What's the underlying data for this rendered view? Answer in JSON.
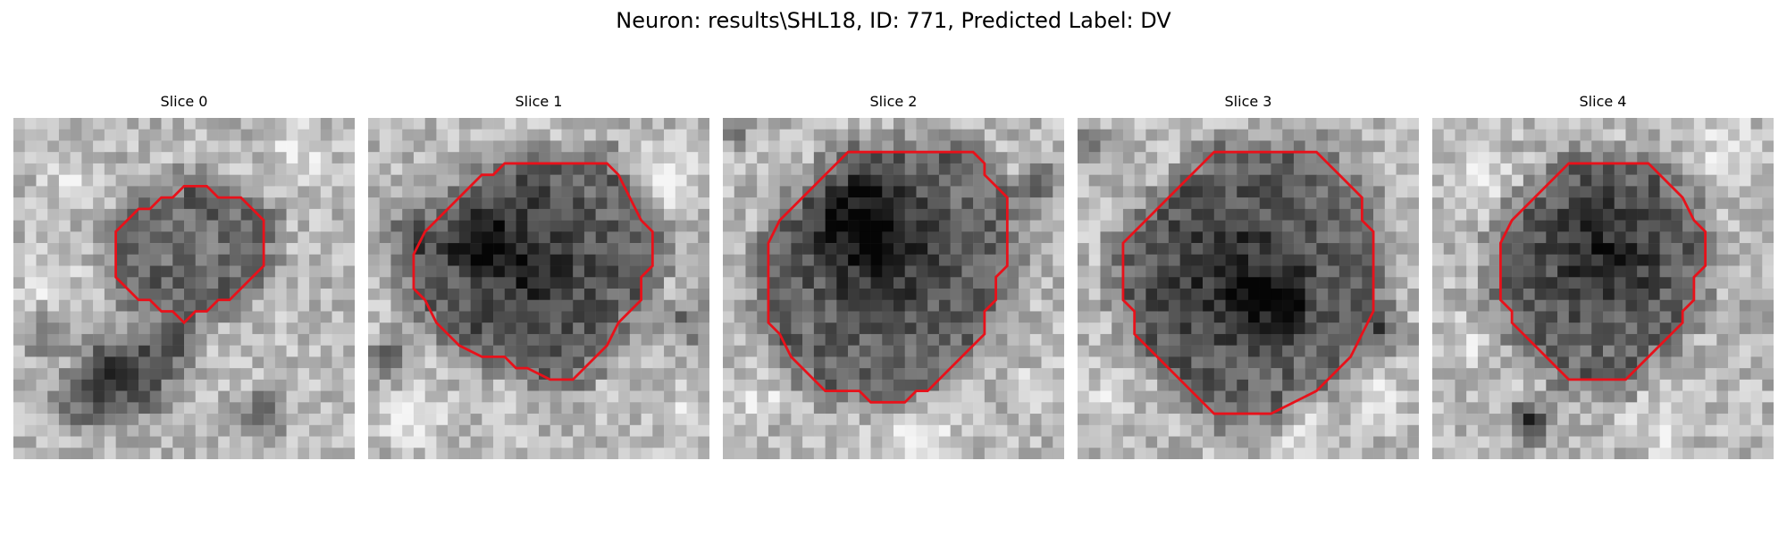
{
  "figure": {
    "title": "Neuron: results\\SHL18, ID: 771, Predicted Label: DV"
  },
  "panels": [
    {
      "title": "Slice 0",
      "contour": [
        [
          18,
          7
        ],
        [
          20,
          7
        ],
        [
          21,
          8
        ],
        [
          22,
          9
        ],
        [
          22,
          11
        ],
        [
          22,
          13
        ],
        [
          21,
          14
        ],
        [
          20,
          15
        ],
        [
          19,
          16
        ],
        [
          18,
          16
        ],
        [
          17,
          17
        ],
        [
          16,
          17
        ],
        [
          15,
          18
        ],
        [
          14,
          17
        ],
        [
          13,
          17
        ],
        [
          12,
          16
        ],
        [
          11,
          16
        ],
        [
          10,
          15
        ],
        [
          9,
          14
        ],
        [
          9,
          13
        ],
        [
          9,
          11
        ],
        [
          9,
          10
        ],
        [
          10,
          9
        ],
        [
          11,
          8
        ],
        [
          12,
          8
        ],
        [
          13,
          7
        ],
        [
          14,
          7
        ],
        [
          15,
          6
        ],
        [
          16,
          6
        ],
        [
          17,
          6
        ]
      ],
      "dark_blobs": [
        [
          11,
          23,
          6
        ],
        [
          9,
          22,
          5
        ],
        [
          14,
          20,
          3
        ],
        [
          6,
          25,
          4
        ],
        [
          3,
          19,
          3
        ],
        [
          22,
          26,
          3
        ]
      ],
      "bright_blobs": [
        [
          3,
          14,
          4
        ],
        [
          25,
          3,
          4
        ],
        [
          5,
          6,
          3
        ]
      ]
    },
    {
      "title": "Slice 1",
      "contour": [
        [
          14,
          4
        ],
        [
          21,
          4
        ],
        [
          22,
          5
        ],
        [
          23,
          7
        ],
        [
          24,
          9
        ],
        [
          25,
          10
        ],
        [
          25,
          13
        ],
        [
          24,
          14
        ],
        [
          24,
          16
        ],
        [
          23,
          17
        ],
        [
          22,
          18
        ],
        [
          21,
          20
        ],
        [
          20,
          21
        ],
        [
          19,
          22
        ],
        [
          18,
          23
        ],
        [
          16,
          23
        ],
        [
          14,
          22
        ],
        [
          13,
          22
        ],
        [
          12,
          21
        ],
        [
          10,
          21
        ],
        [
          8,
          20
        ],
        [
          7,
          19
        ],
        [
          6,
          18
        ],
        [
          5,
          16
        ],
        [
          4,
          15
        ],
        [
          4,
          12
        ],
        [
          5,
          10
        ],
        [
          6,
          9
        ],
        [
          7,
          8
        ],
        [
          8,
          7
        ],
        [
          9,
          6
        ],
        [
          10,
          5
        ],
        [
          11,
          5
        ],
        [
          12,
          4
        ]
      ],
      "dark_blobs": [
        [
          14,
          13,
          9
        ],
        [
          10,
          11,
          4
        ],
        [
          2,
          21,
          3
        ],
        [
          3,
          10,
          3
        ],
        [
          28,
          18,
          3
        ]
      ],
      "bright_blobs": [
        [
          26,
          5,
          4
        ],
        [
          4,
          26,
          4
        ],
        [
          28,
          26,
          3
        ]
      ]
    },
    {
      "title": "Slice 2",
      "contour": [
        [
          11,
          3
        ],
        [
          22,
          3
        ],
        [
          23,
          4
        ],
        [
          23,
          5
        ],
        [
          24,
          6
        ],
        [
          25,
          7
        ],
        [
          25,
          13
        ],
        [
          24,
          14
        ],
        [
          24,
          16
        ],
        [
          23,
          17
        ],
        [
          23,
          19
        ],
        [
          22,
          20
        ],
        [
          21,
          21
        ],
        [
          20,
          22
        ],
        [
          19,
          23
        ],
        [
          18,
          24
        ],
        [
          17,
          24
        ],
        [
          16,
          25
        ],
        [
          13,
          25
        ],
        [
          12,
          24
        ],
        [
          9,
          24
        ],
        [
          8,
          23
        ],
        [
          7,
          22
        ],
        [
          6,
          21
        ],
        [
          5,
          19
        ],
        [
          4,
          18
        ],
        [
          4,
          11
        ],
        [
          5,
          9
        ],
        [
          6,
          8
        ],
        [
          7,
          7
        ],
        [
          8,
          6
        ],
        [
          9,
          5
        ],
        [
          10,
          4
        ]
      ],
      "dark_blobs": [
        [
          14,
          12,
          9
        ],
        [
          12,
          9,
          5
        ],
        [
          1,
          1,
          2
        ],
        [
          28,
          6,
          3
        ]
      ],
      "bright_blobs": [
        [
          17,
          27,
          5
        ],
        [
          3,
          25,
          3
        ],
        [
          28,
          24,
          3
        ]
      ]
    },
    {
      "title": "Slice 3",
      "contour": [
        [
          12,
          3
        ],
        [
          21,
          3
        ],
        [
          22,
          4
        ],
        [
          23,
          5
        ],
        [
          24,
          6
        ],
        [
          25,
          7
        ],
        [
          25,
          9
        ],
        [
          26,
          10
        ],
        [
          26,
          17
        ],
        [
          25,
          19
        ],
        [
          24,
          21
        ],
        [
          23,
          22
        ],
        [
          22,
          23
        ],
        [
          21,
          24
        ],
        [
          19,
          25
        ],
        [
          17,
          26
        ],
        [
          12,
          26
        ],
        [
          11,
          25
        ],
        [
          10,
          24
        ],
        [
          9,
          23
        ],
        [
          8,
          22
        ],
        [
          7,
          21
        ],
        [
          6,
          20
        ],
        [
          5,
          19
        ],
        [
          5,
          17
        ],
        [
          4,
          16
        ],
        [
          4,
          11
        ],
        [
          5,
          10
        ],
        [
          6,
          9
        ],
        [
          7,
          8
        ],
        [
          8,
          7
        ],
        [
          9,
          6
        ],
        [
          10,
          5
        ],
        [
          11,
          4
        ]
      ],
      "dark_blobs": [
        [
          14,
          14,
          10
        ],
        [
          18,
          16,
          4
        ],
        [
          1,
          2,
          2
        ],
        [
          27,
          19,
          3
        ]
      ],
      "bright_blobs": [
        [
          20,
          27,
          4
        ],
        [
          27,
          25,
          3
        ],
        [
          2,
          25,
          3
        ]
      ]
    },
    {
      "title": "Slice 4",
      "contour": [
        [
          12,
          4
        ],
        [
          19,
          4
        ],
        [
          20,
          5
        ],
        [
          21,
          6
        ],
        [
          22,
          7
        ],
        [
          23,
          9
        ],
        [
          24,
          10
        ],
        [
          24,
          13
        ],
        [
          23,
          14
        ],
        [
          23,
          16
        ],
        [
          22,
          17
        ],
        [
          22,
          18
        ],
        [
          21,
          19
        ],
        [
          20,
          20
        ],
        [
          19,
          21
        ],
        [
          18,
          22
        ],
        [
          17,
          23
        ],
        [
          12,
          23
        ],
        [
          11,
          22
        ],
        [
          10,
          21
        ],
        [
          9,
          20
        ],
        [
          8,
          19
        ],
        [
          7,
          18
        ],
        [
          7,
          17
        ],
        [
          6,
          16
        ],
        [
          6,
          11
        ],
        [
          7,
          9
        ],
        [
          8,
          8
        ],
        [
          9,
          7
        ],
        [
          10,
          6
        ],
        [
          11,
          5
        ]
      ],
      "dark_blobs": [
        [
          15,
          12,
          8
        ],
        [
          9,
          27,
          3
        ],
        [
          8,
          26,
          2
        ],
        [
          28,
          18,
          2
        ]
      ],
      "bright_blobs": [
        [
          4,
          5,
          4
        ],
        [
          26,
          3,
          4
        ],
        [
          20,
          27,
          4
        ],
        [
          3,
          20,
          3
        ]
      ]
    }
  ]
}
